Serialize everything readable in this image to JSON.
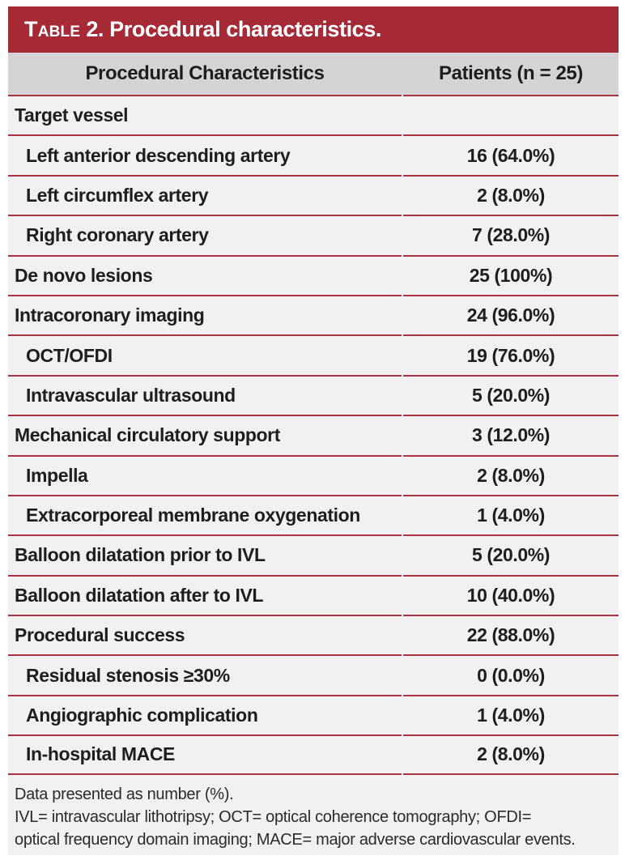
{
  "colors": {
    "accent_red": "#a62a35",
    "line_red": "#a93340",
    "header_gray": "#d5d3d5",
    "row_bg": "#f2f0f1",
    "page_bg": "#ffffff",
    "title_text": "#ffffff",
    "body_text": "#1e1e20"
  },
  "table": {
    "title": {
      "word": "Table",
      "rest": " 2. Procedural characteristics."
    },
    "columns": [
      "Procedural Characteristics",
      "Patients (n = 25)"
    ],
    "rows": [
      {
        "label": "Target vessel",
        "value": "",
        "level": 0
      },
      {
        "label": "Left anterior descending artery",
        "value": "16 (64.0%)",
        "level": 1
      },
      {
        "label": "Left circumflex artery",
        "value": "2 (8.0%)",
        "level": 1
      },
      {
        "label": "Right coronary artery",
        "value": "7 (28.0%)",
        "level": 1
      },
      {
        "label": "De novo lesions",
        "value": "25 (100%)",
        "level": 0
      },
      {
        "label": "Intracoronary imaging",
        "value": "24 (96.0%)",
        "level": 0
      },
      {
        "label": "OCT/OFDI",
        "value": "19 (76.0%)",
        "level": 1
      },
      {
        "label": "Intravascular ultrasound",
        "value": "5 (20.0%)",
        "level": 1
      },
      {
        "label": "Mechanical circulatory support",
        "value": "3 (12.0%)",
        "level": 0
      },
      {
        "label": "Impella",
        "value": "2 (8.0%)",
        "level": 1
      },
      {
        "label": "Extracorporeal membrane oxygenation",
        "value": "1 (4.0%)",
        "level": 1
      },
      {
        "label": "Balloon dilatation prior to IVL",
        "value": "5 (20.0%)",
        "level": 0
      },
      {
        "label": "Balloon dilatation after to IVL",
        "value": "10 (40.0%)",
        "level": 0
      },
      {
        "label": "Procedural success",
        "value": "22 (88.0%)",
        "level": 0
      },
      {
        "label": "Residual stenosis ≥30%",
        "value": "0 (0.0%)",
        "level": 1
      },
      {
        "label": "Angiographic complication",
        "value": "1 (4.0%)",
        "level": 1
      },
      {
        "label": "In-hospital MACE",
        "value": "2 (8.0%)",
        "level": 1
      }
    ],
    "footnote_lines": [
      "Data presented as number (%).",
      "IVL= intravascular lithotripsy; OCT= optical coherence tomography; OFDI=",
      "optical frequency domain imaging; MACE= major adverse cardiovascular events."
    ]
  }
}
